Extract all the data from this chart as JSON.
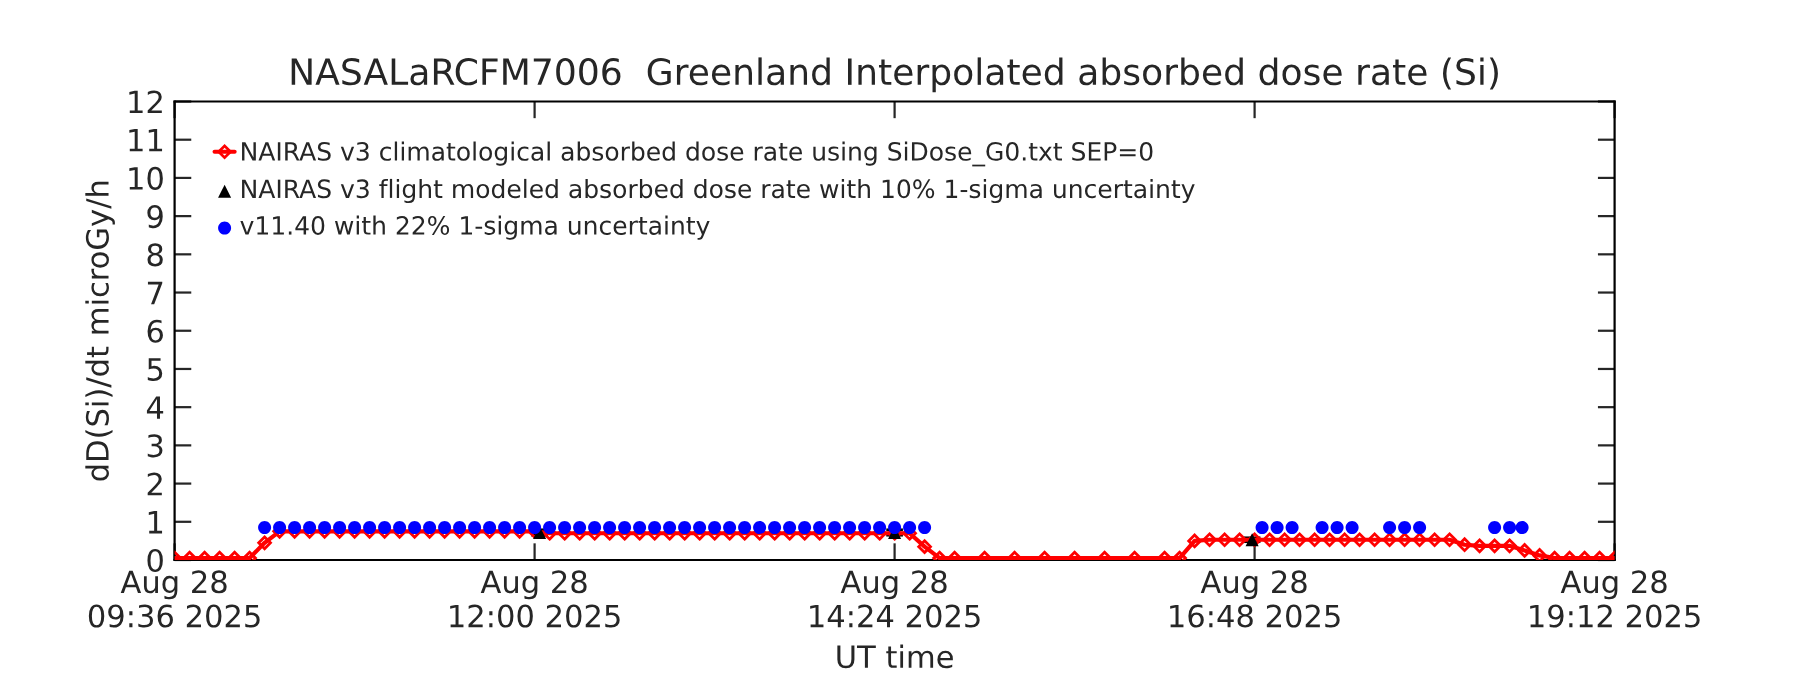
{
  "chart_data": {
    "type": "line",
    "title": "NASALaRCFM7006  Greenland Interpolated absorbed dose rate (Si)",
    "xlabel": "UT time",
    "ylabel": "dD(Si)/dt microGy/h",
    "xlim": [
      "2025-08-28T09:36",
      "2025-08-28T19:12"
    ],
    "xticks": [
      {
        "value": "2025-08-28T09:36",
        "label": "Aug 28\n09:36 2025"
      },
      {
        "value": "2025-08-28T12:00",
        "label": "Aug 28\n12:00 2025"
      },
      {
        "value": "2025-08-28T14:24",
        "label": "Aug 28\n14:24 2025"
      },
      {
        "value": "2025-08-28T16:48",
        "label": "Aug 28\n16:48 2025"
      },
      {
        "value": "2025-08-28T19:12",
        "label": "Aug 28\n19:12 2025"
      }
    ],
    "ylim": [
      0,
      12
    ],
    "yticks": [
      0,
      1,
      2,
      3,
      4,
      5,
      6,
      7,
      8,
      9,
      10,
      11,
      12
    ],
    "legend": "top left",
    "series": [
      {
        "name": "NAIRAS v3 climatological absorbed dose rate using SiDose_G0.txt SEP=0",
        "color": "#ff0000",
        "marker": "diamond",
        "x": [
          "2025-08-28T09:36",
          "2025-08-28T09:42",
          "2025-08-28T09:48",
          "2025-08-28T09:54",
          "2025-08-28T10:00",
          "2025-08-28T10:06",
          "2025-08-28T10:12",
          "2025-08-28T10:18",
          "2025-08-28T10:24",
          "2025-08-28T10:30",
          "2025-08-28T10:36",
          "2025-08-28T10:42",
          "2025-08-28T10:48",
          "2025-08-28T10:54",
          "2025-08-28T11:00",
          "2025-08-28T11:06",
          "2025-08-28T11:12",
          "2025-08-28T11:18",
          "2025-08-28T11:24",
          "2025-08-28T11:30",
          "2025-08-28T11:36",
          "2025-08-28T11:42",
          "2025-08-28T11:48",
          "2025-08-28T11:54",
          "2025-08-28T12:00",
          "2025-08-28T12:06",
          "2025-08-28T12:12",
          "2025-08-28T12:18",
          "2025-08-28T12:24",
          "2025-08-28T12:30",
          "2025-08-28T12:36",
          "2025-08-28T12:42",
          "2025-08-28T12:48",
          "2025-08-28T12:54",
          "2025-08-28T13:00",
          "2025-08-28T13:06",
          "2025-08-28T13:12",
          "2025-08-28T13:18",
          "2025-08-28T13:24",
          "2025-08-28T13:30",
          "2025-08-28T13:36",
          "2025-08-28T13:42",
          "2025-08-28T13:48",
          "2025-08-28T13:54",
          "2025-08-28T14:00",
          "2025-08-28T14:06",
          "2025-08-28T14:12",
          "2025-08-28T14:18",
          "2025-08-28T14:24",
          "2025-08-28T14:30",
          "2025-08-28T14:36",
          "2025-08-28T14:42",
          "2025-08-28T14:48",
          "2025-08-28T15:00",
          "2025-08-28T15:12",
          "2025-08-28T15:24",
          "2025-08-28T15:36",
          "2025-08-28T15:48",
          "2025-08-28T16:00",
          "2025-08-28T16:12",
          "2025-08-28T16:18",
          "2025-08-28T16:24",
          "2025-08-28T16:30",
          "2025-08-28T16:36",
          "2025-08-28T16:42",
          "2025-08-28T16:48",
          "2025-08-28T16:54",
          "2025-08-28T17:00",
          "2025-08-28T17:06",
          "2025-08-28T17:12",
          "2025-08-28T17:18",
          "2025-08-28T17:24",
          "2025-08-28T17:30",
          "2025-08-28T17:36",
          "2025-08-28T17:42",
          "2025-08-28T17:48",
          "2025-08-28T17:54",
          "2025-08-28T18:00",
          "2025-08-28T18:06",
          "2025-08-28T18:12",
          "2025-08-28T18:18",
          "2025-08-28T18:24",
          "2025-08-28T18:30",
          "2025-08-28T18:36",
          "2025-08-28T18:42",
          "2025-08-28T18:48",
          "2025-08-28T18:54",
          "2025-08-28T19:00",
          "2025-08-28T19:06",
          "2025-08-28T19:12"
        ],
        "values": [
          0.05,
          0.05,
          0.05,
          0.05,
          0.05,
          0.05,
          0.45,
          0.75,
          0.75,
          0.75,
          0.75,
          0.75,
          0.75,
          0.75,
          0.75,
          0.75,
          0.75,
          0.75,
          0.75,
          0.75,
          0.75,
          0.75,
          0.75,
          0.75,
          0.75,
          0.7,
          0.7,
          0.7,
          0.7,
          0.7,
          0.7,
          0.7,
          0.7,
          0.7,
          0.7,
          0.7,
          0.7,
          0.7,
          0.7,
          0.7,
          0.7,
          0.7,
          0.7,
          0.7,
          0.7,
          0.7,
          0.7,
          0.7,
          0.7,
          0.7,
          0.35,
          0.05,
          0.05,
          0.05,
          0.05,
          0.05,
          0.05,
          0.05,
          0.05,
          0.05,
          0.05,
          0.5,
          0.53,
          0.53,
          0.53,
          0.53,
          0.53,
          0.53,
          0.53,
          0.53,
          0.53,
          0.53,
          0.53,
          0.53,
          0.53,
          0.53,
          0.53,
          0.53,
          0.53,
          0.4,
          0.37,
          0.37,
          0.37,
          0.25,
          0.12,
          0.05,
          0.05,
          0.05,
          0.05,
          0.05
        ]
      },
      {
        "name": "NAIRAS v3 flight modeled absorbed dose rate with 10% 1-sigma uncertainty",
        "type": "scatter",
        "color": "#000000",
        "marker": "triangle",
        "x": [
          "2025-08-28T12:02",
          "2025-08-28T14:24",
          "2025-08-28T16:47"
        ],
        "values": [
          0.72,
          0.72,
          0.53
        ],
        "errors": [
          0.07,
          0.07,
          0.05
        ]
      },
      {
        "name": "v11.40 with 22% 1-sigma uncertainty",
        "type": "scatter",
        "color": "#0000ff",
        "marker": "circle",
        "x": [
          "2025-08-28T10:12",
          "2025-08-28T10:18",
          "2025-08-28T10:24",
          "2025-08-28T10:30",
          "2025-08-28T10:36",
          "2025-08-28T10:42",
          "2025-08-28T10:48",
          "2025-08-28T10:54",
          "2025-08-28T11:00",
          "2025-08-28T11:06",
          "2025-08-28T11:12",
          "2025-08-28T11:18",
          "2025-08-28T11:24",
          "2025-08-28T11:30",
          "2025-08-28T11:36",
          "2025-08-28T11:42",
          "2025-08-28T11:48",
          "2025-08-28T11:54",
          "2025-08-28T12:00",
          "2025-08-28T12:06",
          "2025-08-28T12:12",
          "2025-08-28T12:18",
          "2025-08-28T12:24",
          "2025-08-28T12:30",
          "2025-08-28T12:36",
          "2025-08-28T12:42",
          "2025-08-28T12:48",
          "2025-08-28T12:54",
          "2025-08-28T13:00",
          "2025-08-28T13:06",
          "2025-08-28T13:12",
          "2025-08-28T13:18",
          "2025-08-28T13:24",
          "2025-08-28T13:30",
          "2025-08-28T13:36",
          "2025-08-28T13:42",
          "2025-08-28T13:48",
          "2025-08-28T13:54",
          "2025-08-28T14:00",
          "2025-08-28T14:06",
          "2025-08-28T14:12",
          "2025-08-28T14:18",
          "2025-08-28T14:24",
          "2025-08-28T14:30",
          "2025-08-28T14:36",
          "2025-08-28T16:51",
          "2025-08-28T16:57",
          "2025-08-28T17:03",
          "2025-08-28T17:15",
          "2025-08-28T17:21",
          "2025-08-28T17:27",
          "2025-08-28T17:42",
          "2025-08-28T17:48",
          "2025-08-28T17:54",
          "2025-08-28T18:24",
          "2025-08-28T18:30",
          "2025-08-28T18:35"
        ],
        "values": [
          0.85,
          0.85,
          0.85,
          0.85,
          0.85,
          0.85,
          0.85,
          0.85,
          0.85,
          0.85,
          0.85,
          0.85,
          0.85,
          0.85,
          0.85,
          0.85,
          0.85,
          0.85,
          0.85,
          0.85,
          0.85,
          0.85,
          0.85,
          0.85,
          0.85,
          0.85,
          0.85,
          0.85,
          0.85,
          0.85,
          0.85,
          0.85,
          0.85,
          0.85,
          0.85,
          0.85,
          0.85,
          0.85,
          0.85,
          0.85,
          0.85,
          0.85,
          0.85,
          0.85,
          0.85,
          0.85,
          0.85,
          0.85,
          0.85,
          0.85,
          0.85,
          0.85,
          0.85,
          0.85,
          0.85,
          0.85,
          0.85
        ]
      }
    ]
  }
}
